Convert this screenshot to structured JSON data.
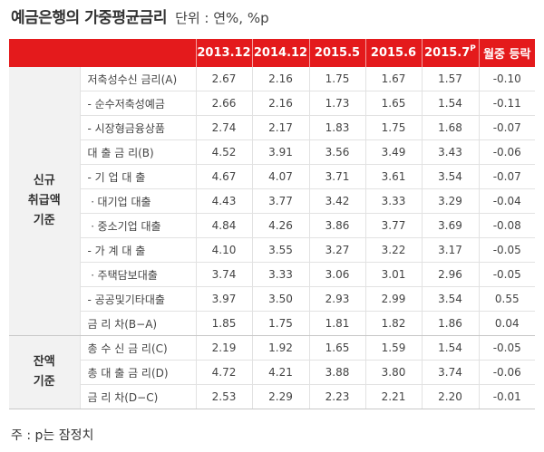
{
  "title": {
    "main": "예금은행의 가중평균금리",
    "unit": "단위 : 연%, %p"
  },
  "columns": [
    "2013.12",
    "2014.12",
    "2015.5",
    "2015.6",
    "2015.7",
    "월중 등락"
  ],
  "column_sup": "P",
  "groups": [
    {
      "label_lines": [
        "신규",
        "취급액",
        "기준"
      ],
      "rows": [
        {
          "label": "저축성수신 금리(A)",
          "values": [
            "2.67",
            "2.16",
            "1.75",
            "1.67",
            "1.57",
            "-0.10"
          ]
        },
        {
          "label": "- 순수저축성예금",
          "values": [
            "2.66",
            "2.16",
            "1.73",
            "1.65",
            "1.54",
            "-0.11"
          ]
        },
        {
          "label": "- 시장형금융상품",
          "values": [
            "2.74",
            "2.17",
            "1.83",
            "1.75",
            "1.68",
            "-0.07"
          ]
        },
        {
          "label": "대 출 금 리(B)",
          "values": [
            "4.52",
            "3.91",
            "3.56",
            "3.49",
            "3.43",
            "-0.06"
          ]
        },
        {
          "label": "- 기 업 대 출",
          "values": [
            "4.67",
            "4.07",
            "3.71",
            "3.61",
            "3.54",
            "-0.07"
          ]
        },
        {
          "label": "ㆍ대기업 대출",
          "values": [
            "4.43",
            "3.77",
            "3.42",
            "3.33",
            "3.29",
            "-0.04"
          ]
        },
        {
          "label": "ㆍ중소기업 대출",
          "values": [
            "4.84",
            "4.26",
            "3.86",
            "3.77",
            "3.69",
            "-0.08"
          ]
        },
        {
          "label": "- 가 계 대 출",
          "values": [
            "4.10",
            "3.55",
            "3.27",
            "3.22",
            "3.17",
            "-0.05"
          ]
        },
        {
          "label": "ㆍ주택담보대출",
          "values": [
            "3.74",
            "3.33",
            "3.06",
            "3.01",
            "2.96",
            "-0.05"
          ]
        },
        {
          "label": "- 공공및기타대출",
          "values": [
            "3.97",
            "3.50",
            "2.93",
            "2.99",
            "3.54",
            "0.55"
          ]
        },
        {
          "label": "금 리 차(B−A)",
          "values": [
            "1.85",
            "1.75",
            "1.81",
            "1.82",
            "1.86",
            "0.04"
          ]
        }
      ]
    },
    {
      "label_lines": [
        "잔액",
        "기준"
      ],
      "rows": [
        {
          "label": "총 수 신 금 리(C)",
          "values": [
            "2.19",
            "1.92",
            "1.65",
            "1.59",
            "1.54",
            "-0.05"
          ]
        },
        {
          "label": "총 대 출 금 리(D)",
          "values": [
            "4.72",
            "4.21",
            "3.88",
            "3.80",
            "3.74",
            "-0.06"
          ]
        },
        {
          "label": "금 리 차(D−C)",
          "values": [
            "2.53",
            "2.29",
            "2.23",
            "2.21",
            "2.20",
            "-0.01"
          ]
        }
      ]
    }
  ],
  "note": "주 : p는 잠정치"
}
